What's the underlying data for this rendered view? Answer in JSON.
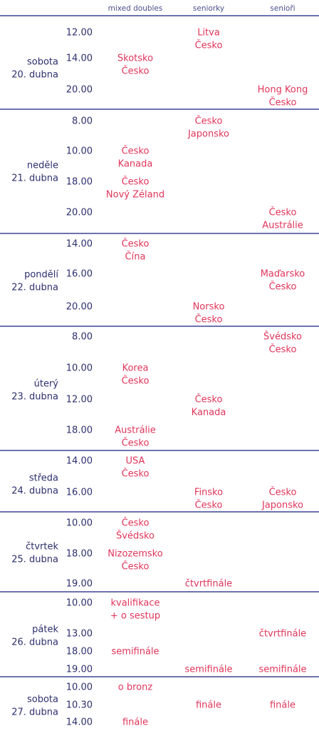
{
  "header": [
    "mixed doubles",
    "seniorky",
    "senioři"
  ],
  "days": [
    {
      "day": [
        "sobota",
        "20. dubna"
      ],
      "rows": [
        {
          "time": "12.00",
          "cells": [
            [],
            [
              "Litva",
              "Česko"
            ],
            []
          ]
        },
        {
          "time": "14.00",
          "cells": [
            [
              "Skotsko",
              "Česko"
            ],
            [],
            []
          ]
        },
        {
          "time": "20.00",
          "cells": [
            [],
            [],
            [
              "Hong Kong",
              "Česko"
            ]
          ]
        }
      ]
    },
    {
      "day": [
        "neděle",
        "21. dubna"
      ],
      "rows": [
        {
          "time": "8.00",
          "cells": [
            [],
            [
              "Česko",
              "Japonsko"
            ],
            []
          ]
        },
        {
          "time": "10.00",
          "cells": [
            [
              "Česko",
              "Kanada"
            ],
            [],
            []
          ]
        },
        {
          "time": "18.00",
          "cells": [
            [
              "Česko",
              "Nový Zéland"
            ],
            [],
            []
          ]
        },
        {
          "time": "20.00",
          "cells": [
            [],
            [],
            [
              "Česko",
              "Austrálie"
            ]
          ]
        }
      ]
    },
    {
      "day": [
        "pondělí",
        "22. dubna"
      ],
      "rows": [
        {
          "time": "14.00",
          "cells": [
            [
              "Česko",
              "Čína"
            ],
            [],
            []
          ]
        },
        {
          "time": "16.00",
          "cells": [
            [],
            [],
            [
              "Maďarsko",
              "Česko"
            ]
          ]
        },
        {
          "time": "20.00",
          "cells": [
            [],
            [
              "Norsko",
              "Česko"
            ],
            []
          ]
        }
      ]
    },
    {
      "day": [
        "úterý",
        "23. dubna"
      ],
      "rows": [
        {
          "time": "8.00",
          "cells": [
            [],
            [],
            [
              "Švédsko",
              "Česko"
            ]
          ]
        },
        {
          "time": "10.00",
          "cells": [
            [
              "Korea",
              "Česko"
            ],
            [],
            []
          ]
        },
        {
          "time": "12.00",
          "cells": [
            [],
            [
              "Česko",
              "Kanada"
            ],
            []
          ]
        },
        {
          "time": "18.00",
          "cells": [
            [
              "Austrálie",
              "Česko"
            ],
            [],
            []
          ]
        }
      ]
    },
    {
      "day": [
        "středa",
        "24. dubna"
      ],
      "rows": [
        {
          "time": "14.00",
          "cells": [
            [
              "USA",
              "Česko"
            ],
            [],
            []
          ]
        },
        {
          "time": "16.00",
          "cells": [
            [],
            [
              "Finsko",
              "Česko"
            ],
            [
              "Česko",
              "Japonsko"
            ]
          ]
        }
      ]
    },
    {
      "day": [
        "čtvrtek",
        "25. dubna"
      ],
      "rows": [
        {
          "time": "10.00",
          "cells": [
            [
              "Česko",
              "Švédsko"
            ],
            [],
            []
          ]
        },
        {
          "time": "18.00",
          "cells": [
            [
              "Nizozemsko",
              "Česko"
            ],
            [],
            []
          ]
        },
        {
          "time": "19.00",
          "cells": [
            [],
            [
              "čtvrtfinále"
            ],
            []
          ]
        }
      ]
    },
    {
      "day": [
        "pátek",
        "26. dubna"
      ],
      "rows": [
        {
          "time": "10.00",
          "cells": [
            [
              "kvalifikace",
              "+ o sestup"
            ],
            [],
            []
          ]
        },
        {
          "time": "13.00",
          "cells": [
            [],
            [],
            [
              "čtvrtfinále"
            ]
          ]
        },
        {
          "time": "18.00",
          "cells": [
            [
              "semifinále"
            ],
            [],
            []
          ]
        },
        {
          "time": "19.00",
          "cells": [
            [],
            [
              "semifinále"
            ],
            [
              "semifinále"
            ]
          ]
        }
      ]
    },
    {
      "day": [
        "sobota",
        "27. dubna"
      ],
      "rows": [
        {
          "time": "10.00",
          "cells": [
            [
              "o bronz"
            ],
            [],
            []
          ]
        },
        {
          "time": "10.30",
          "cells": [
            [],
            [
              "finále"
            ],
            [
              "finále"
            ]
          ]
        },
        {
          "time": "14.00",
          "cells": [
            [
              "finále"
            ],
            [],
            []
          ]
        }
      ]
    }
  ]
}
